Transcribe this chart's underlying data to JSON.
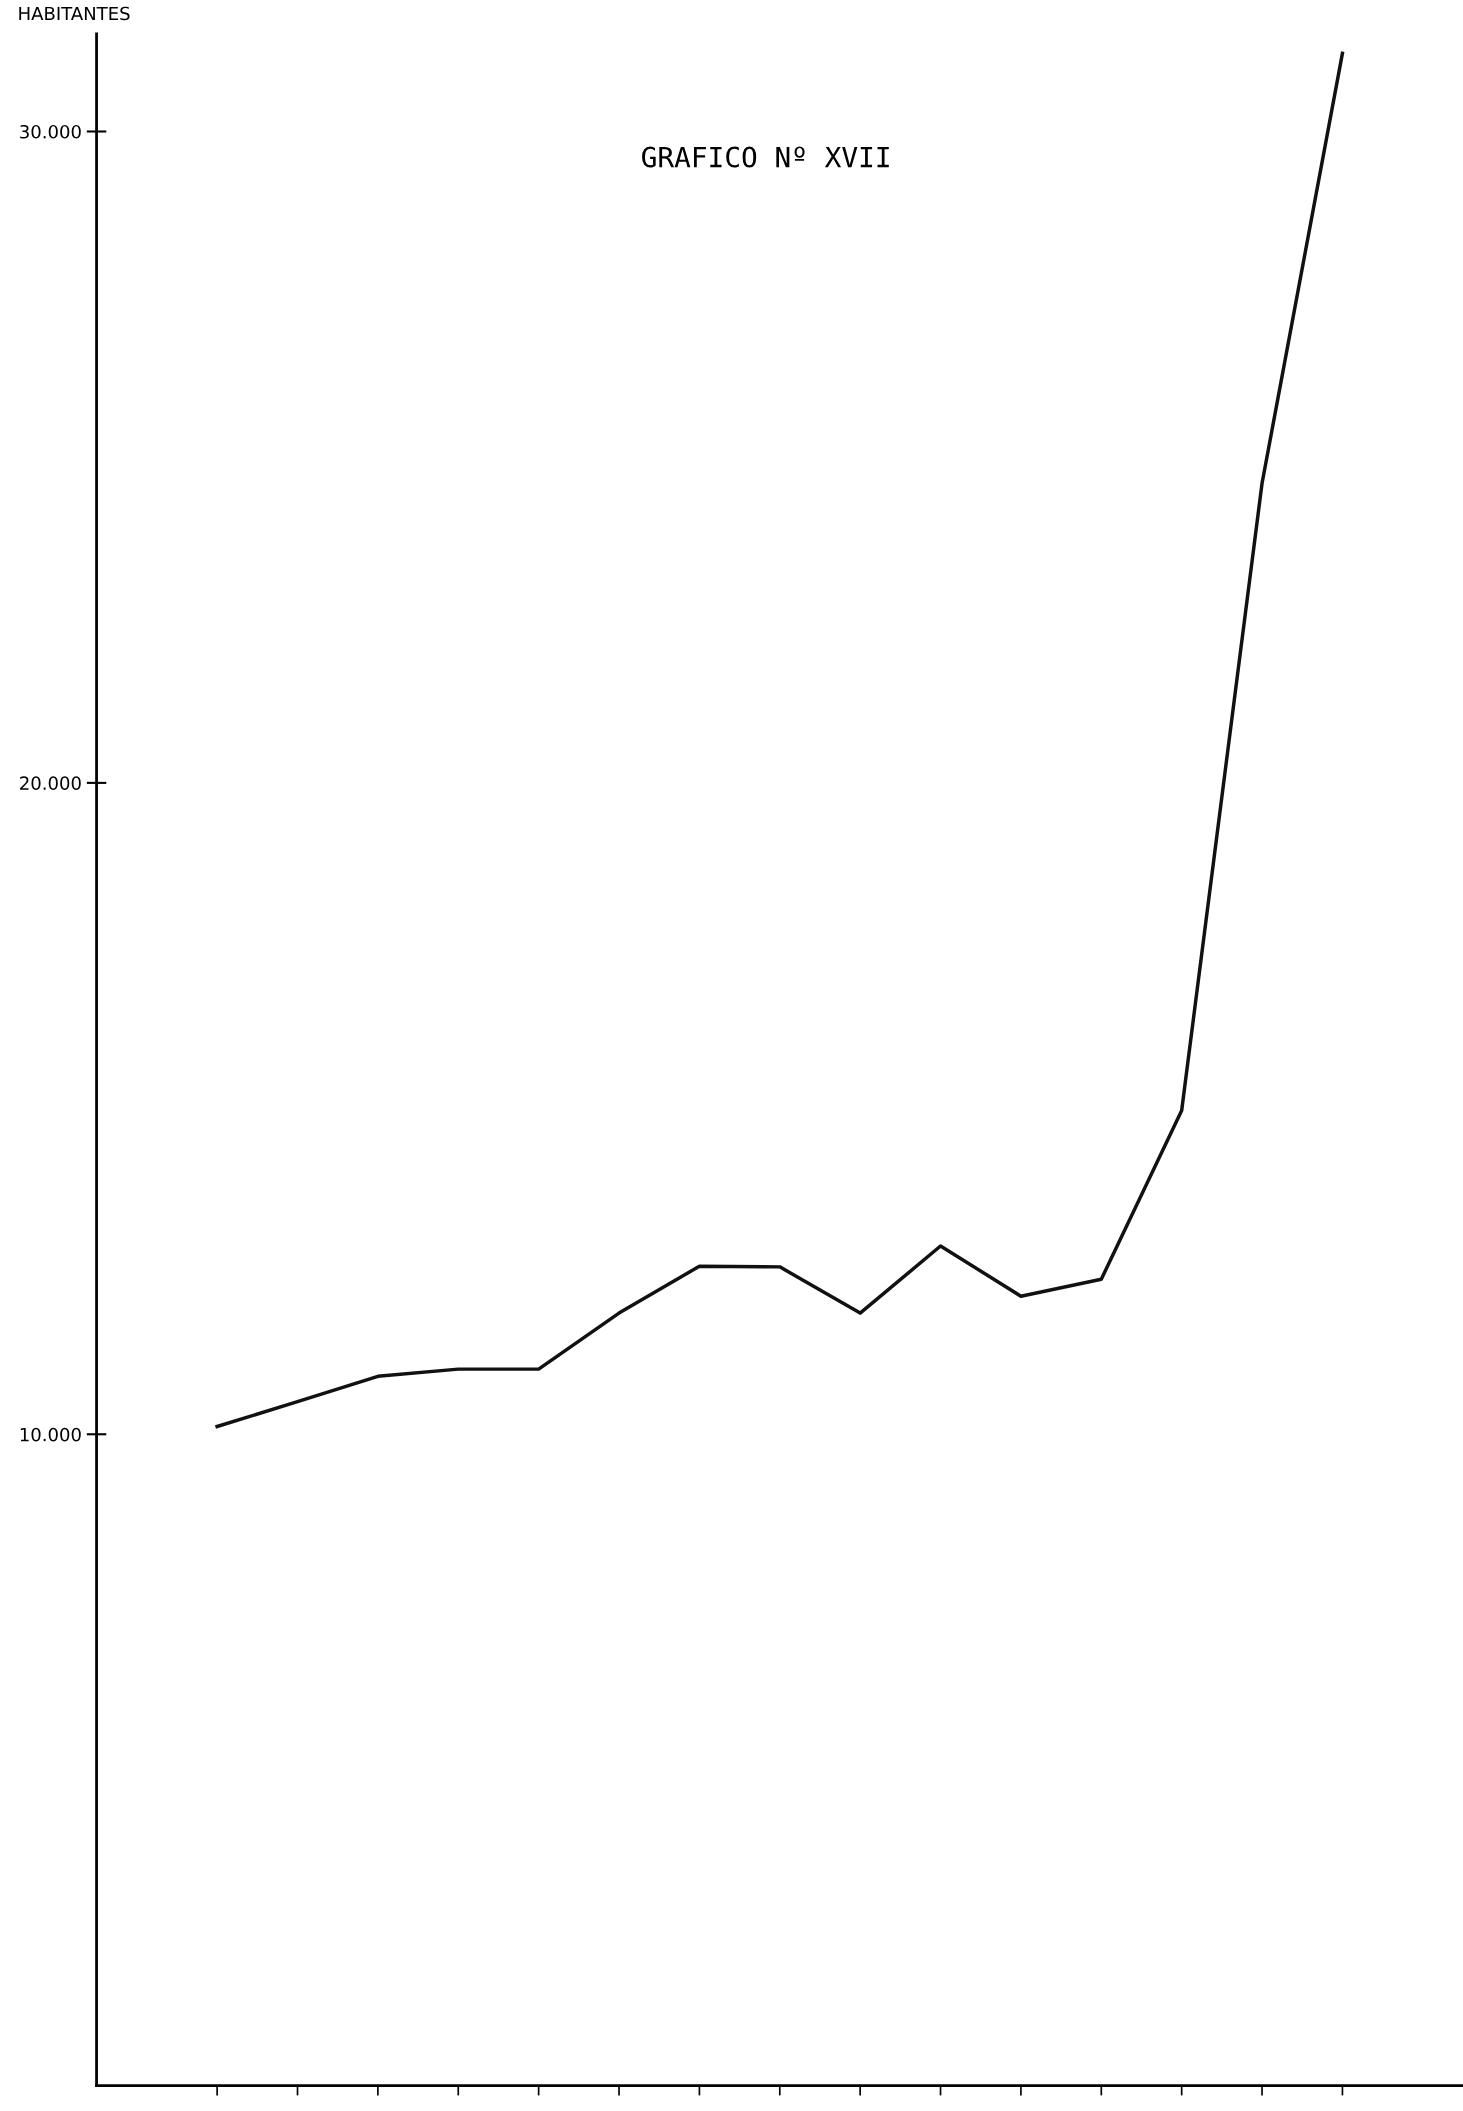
{
  "chart_data": {
    "type": "line",
    "title": "GRAFICO Nº XVII",
    "ylabel": "HABITANTES",
    "categories": [
      null,
      null,
      null,
      null,
      null,
      null,
      null,
      null,
      null,
      null,
      null,
      null,
      null,
      null,
      null
    ],
    "series": [
      {
        "color": "#111111",
        "values": [
          10120,
          10500,
          10890,
          11000,
          11000,
          11860,
          12580,
          12570,
          11860,
          12890,
          12120,
          12380,
          14970,
          24600,
          31200
        ]
      }
    ],
    "ylim": [
      0,
      31500
    ],
    "yticks": [
      {
        "value": 10000,
        "label": "10.000"
      },
      {
        "value": 20000,
        "label": "20.000"
      },
      {
        "value": 30000,
        "label": "30.000"
      }
    ],
    "tick_labels": "y",
    "grid": false,
    "legend": false,
    "marker": "none",
    "line_style": "solid"
  }
}
